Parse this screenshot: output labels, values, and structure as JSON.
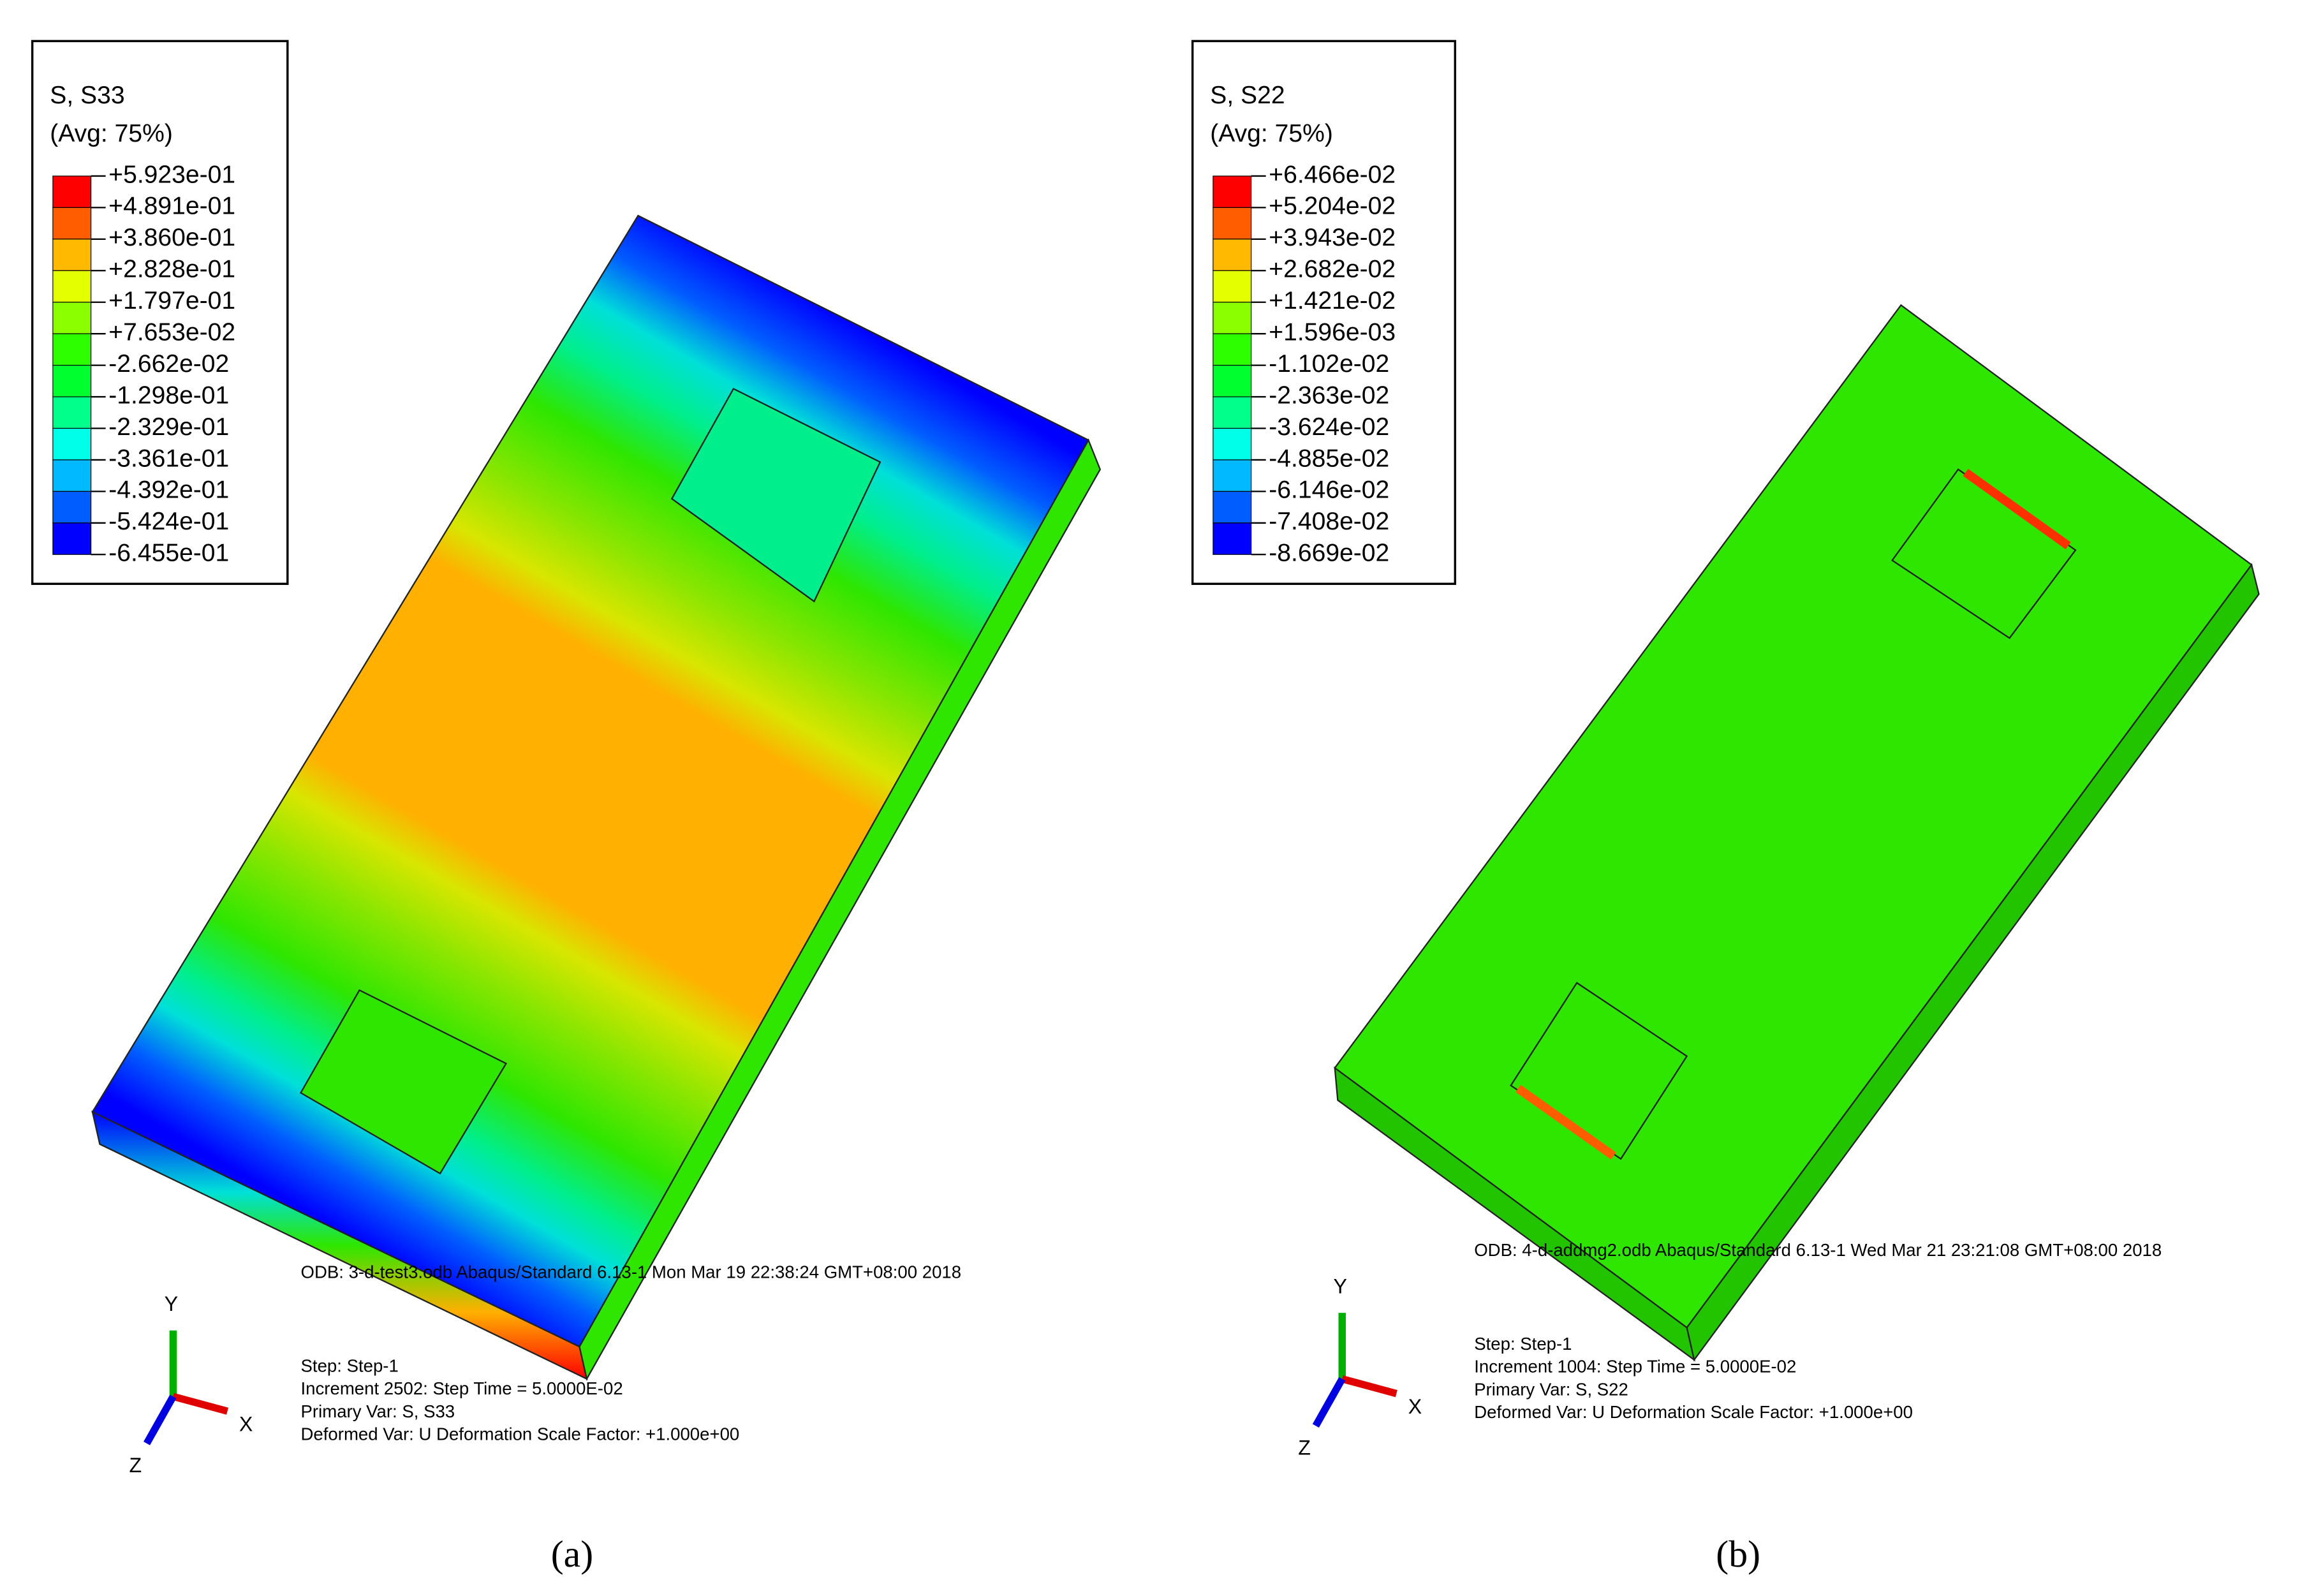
{
  "panels": [
    {
      "legend": {
        "title": "S, S33",
        "subtitle": "(Avg: 75%)",
        "labels": [
          "+5.923e-01",
          "+4.891e-01",
          "+3.860e-01",
          "+2.828e-01",
          "+1.797e-01",
          "+7.653e-02",
          "-2.662e-02",
          "-1.298e-01",
          "-2.329e-01",
          "-3.361e-01",
          "-4.392e-01",
          "-5.424e-01",
          "-6.455e-01"
        ]
      },
      "odb_line": "ODB: 3-d-test3.odb    Abaqus/Standard 6.13-1    Mon Mar 19 22:38:24 GMT+08:00 2018",
      "step_lines": [
        "Step: Step-1",
        "Increment   2502: Step Time =    5.0000E-02",
        "Primary Var: S, S33",
        "Deformed Var: U   Deformation Scale Factor: +1.000e+00"
      ],
      "axes": {
        "x": "X",
        "y": "Y",
        "z": "Z"
      },
      "caption": "(a)"
    },
    {
      "legend": {
        "title": "S, S22",
        "subtitle": "(Avg: 75%)",
        "labels": [
          "+6.466e-02",
          "+5.204e-02",
          "+3.943e-02",
          "+2.682e-02",
          "+1.421e-02",
          "+1.596e-03",
          "-1.102e-02",
          "-2.363e-02",
          "-3.624e-02",
          "-4.885e-02",
          "-6.146e-02",
          "-7.408e-02",
          "-8.669e-02"
        ]
      },
      "odb_line": "ODB: 4-d-addmg2.odb    Abaqus/Standard 6.13-1    Wed Mar 21 23:21:08 GMT+08:00 2018",
      "step_lines": [
        "Step: Step-1",
        "Increment   1004: Step Time =    5.0000E-02",
        "Primary Var: S, S22",
        "Deformed Var: U   Deformation Scale Factor: +1.000e+00"
      ],
      "axes": {
        "x": "X",
        "y": "Y",
        "z": "Z"
      },
      "caption": "(b)"
    }
  ]
}
